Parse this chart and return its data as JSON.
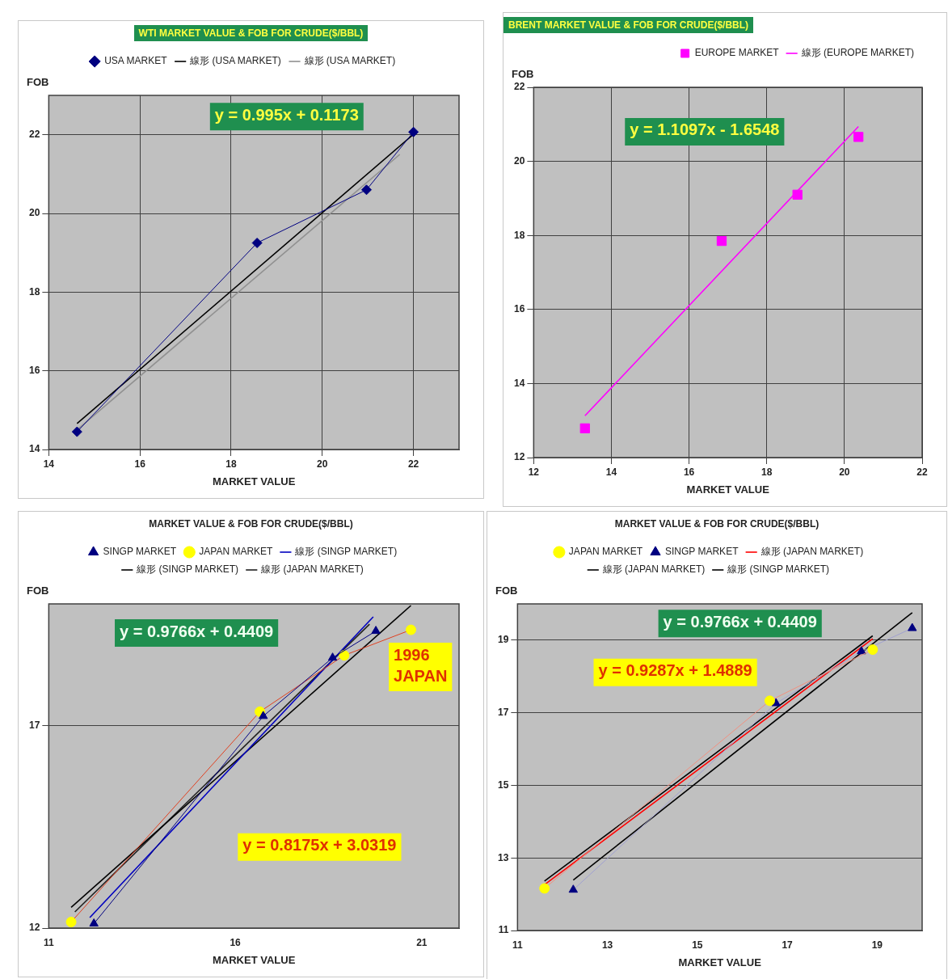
{
  "chart_data": [
    {
      "type": "scatter",
      "title": "WTI MARKET VALUE & FOB FOR CRUDE($/BBL)",
      "xlabel": "MARKET VALUE",
      "ylabel": "FOB",
      "xlim": [
        14,
        23
      ],
      "ylim": [
        14,
        23
      ],
      "xticks": [
        14,
        16,
        18,
        20,
        22
      ],
      "yticks": [
        14,
        16,
        18,
        20,
        22
      ],
      "grid": true,
      "legend": "top",
      "series": [
        {
          "name": "USA MARKET",
          "type": "line",
          "marker": "diamond",
          "color": "#000080",
          "x": [
            14.62,
            18.57,
            20.97,
            22.0
          ],
          "values": [
            14.45,
            19.25,
            20.6,
            22.07
          ]
        },
        {
          "name": "線形 (USA MARKET)",
          "type": "line",
          "marker": "none",
          "color": "#000000",
          "x": [
            14.62,
            22.0
          ],
          "values": [
            14.66,
            22.01
          ]
        },
        {
          "name": "線形 (USA MARKET)",
          "type": "line",
          "marker": "none",
          "color": "#909090",
          "x": [
            14.62,
            21.7
          ],
          "values": [
            14.5,
            21.5
          ]
        }
      ],
      "annotations": [
        "y = 0.995x + 0.1173"
      ]
    },
    {
      "type": "scatter",
      "title": "BRENT MARKET VALUE & FOB FOR CRUDE($/BBL)",
      "xlabel": "MARKET VALUE",
      "ylabel": "FOB",
      "xlim": [
        12,
        22
      ],
      "ylim": [
        12,
        22
      ],
      "xticks": [
        12,
        14,
        16,
        18,
        20,
        22
      ],
      "yticks": [
        12,
        14,
        16,
        18,
        20,
        22
      ],
      "grid": true,
      "legend": "top right",
      "series": [
        {
          "name": "EUROPE MARKET",
          "type": "scatter",
          "marker": "square",
          "color": "#ff00ff",
          "x": [
            13.32,
            16.84,
            18.79,
            20.36
          ],
          "values": [
            12.79,
            17.85,
            19.1,
            20.66
          ]
        },
        {
          "name": "線形 (EUROPE MARKET)",
          "type": "line",
          "marker": "none",
          "color": "#ff00ff",
          "x": [
            13.32,
            20.36
          ],
          "values": [
            13.13,
            20.94
          ]
        }
      ],
      "annotations": [
        "y = 1.1097x - 1.6548"
      ]
    },
    {
      "type": "scatter",
      "title": "MARKET VALUE & FOB FOR CRUDE($/BBL)",
      "xlabel": "MARKET VALUE",
      "ylabel": "FOB",
      "xlim": [
        11,
        22
      ],
      "ylim": [
        12,
        20
      ],
      "xticks": [
        11,
        16,
        21
      ],
      "yticks": [
        12,
        17
      ],
      "grid": "y",
      "legend": "top",
      "series": [
        {
          "name": "SINGP MARKET",
          "type": "line",
          "marker": "triangle",
          "color": "#000080",
          "x": [
            12.21,
            16.75,
            18.61,
            19.77
          ],
          "values": [
            12.11,
            17.23,
            18.67,
            19.33
          ]
        },
        {
          "name": "JAPAN MARKET",
          "type": "line",
          "marker": "circle",
          "color": "#e04020",
          "colors": [
            "#ffff00",
            "#ffff00",
            "#ffff00",
            "#ffff00"
          ],
          "x": [
            11.6,
            16.66,
            18.92,
            20.71
          ],
          "values": [
            12.15,
            17.34,
            18.73,
            19.36
          ]
        },
        {
          "name": "線形 (SINGP MARKET)",
          "type": "line",
          "marker": "none",
          "color": "#0000c0",
          "x": [
            12.1,
            19.7
          ],
          "values": [
            12.26,
            19.68
          ]
        },
        {
          "name": "線形 (SINGP MARKET)",
          "type": "line",
          "marker": "none",
          "color": "#000000",
          "x": [
            11.6,
            20.71
          ],
          "values": [
            12.51,
            19.96
          ]
        },
        {
          "name": "線形 (JAPAN MARKET)",
          "type": "line",
          "marker": "none",
          "color": "#202020",
          "x": [
            11.7,
            19.6
          ],
          "values": [
            12.4,
            19.5
          ]
        }
      ],
      "annotations": [
        "y = 0.9766x + 0.4409",
        "y = 0.8175x + 3.0319",
        {
          "text": "1996 JAPAN",
          "x": 20.71,
          "y": 19.36
        }
      ]
    },
    {
      "type": "scatter",
      "title": "MARKET VALUE & FOB FOR CRUDE($/BBL)",
      "xlabel": "MARKET VALUE",
      "ylabel": "FOB",
      "xlim": [
        11,
        20
      ],
      "ylim": [
        11,
        20
      ],
      "xticks": [
        11,
        13,
        15,
        17,
        19
      ],
      "yticks": [
        11,
        13,
        15,
        17,
        19
      ],
      "grid": "y",
      "legend": "top",
      "series": [
        {
          "name": "JAPAN MARKET",
          "type": "line",
          "marker": "circle",
          "color": "#f09080",
          "colors": [
            "#ffff00",
            "#ffff00",
            "#ffff00"
          ],
          "x": [
            11.6,
            16.61,
            18.9
          ],
          "values": [
            12.16,
            17.33,
            18.74
          ]
        },
        {
          "name": "SINGP MARKET",
          "type": "line",
          "marker": "triangle",
          "color": "#a0a0d0",
          "colors": [
            "#000080",
            "#000080",
            "#000080",
            "#000080"
          ],
          "x": [
            12.24,
            16.75,
            18.65,
            19.78
          ],
          "values": [
            12.12,
            17.26,
            18.69,
            19.33
          ]
        },
        {
          "name": "線形 (JAPAN MARKET)",
          "type": "line",
          "marker": "none",
          "color": "#ff0000",
          "x": [
            11.6,
            18.9
          ],
          "values": [
            12.26,
            19.04
          ]
        },
        {
          "name": "線形 (JAPAN MARKET)",
          "type": "line",
          "marker": "none",
          "color": "#000000",
          "x": [
            11.6,
            18.9
          ],
          "values": [
            12.36,
            19.12
          ]
        },
        {
          "name": "線形 (SINGP MARKET)",
          "type": "line",
          "marker": "none",
          "color": "#000000",
          "x": [
            12.24,
            19.78
          ],
          "values": [
            12.39,
            19.76
          ]
        }
      ],
      "annotations": [
        "y = 0.9766x + 0.4409",
        "y = 0.9287x + 1.4889"
      ]
    }
  ]
}
